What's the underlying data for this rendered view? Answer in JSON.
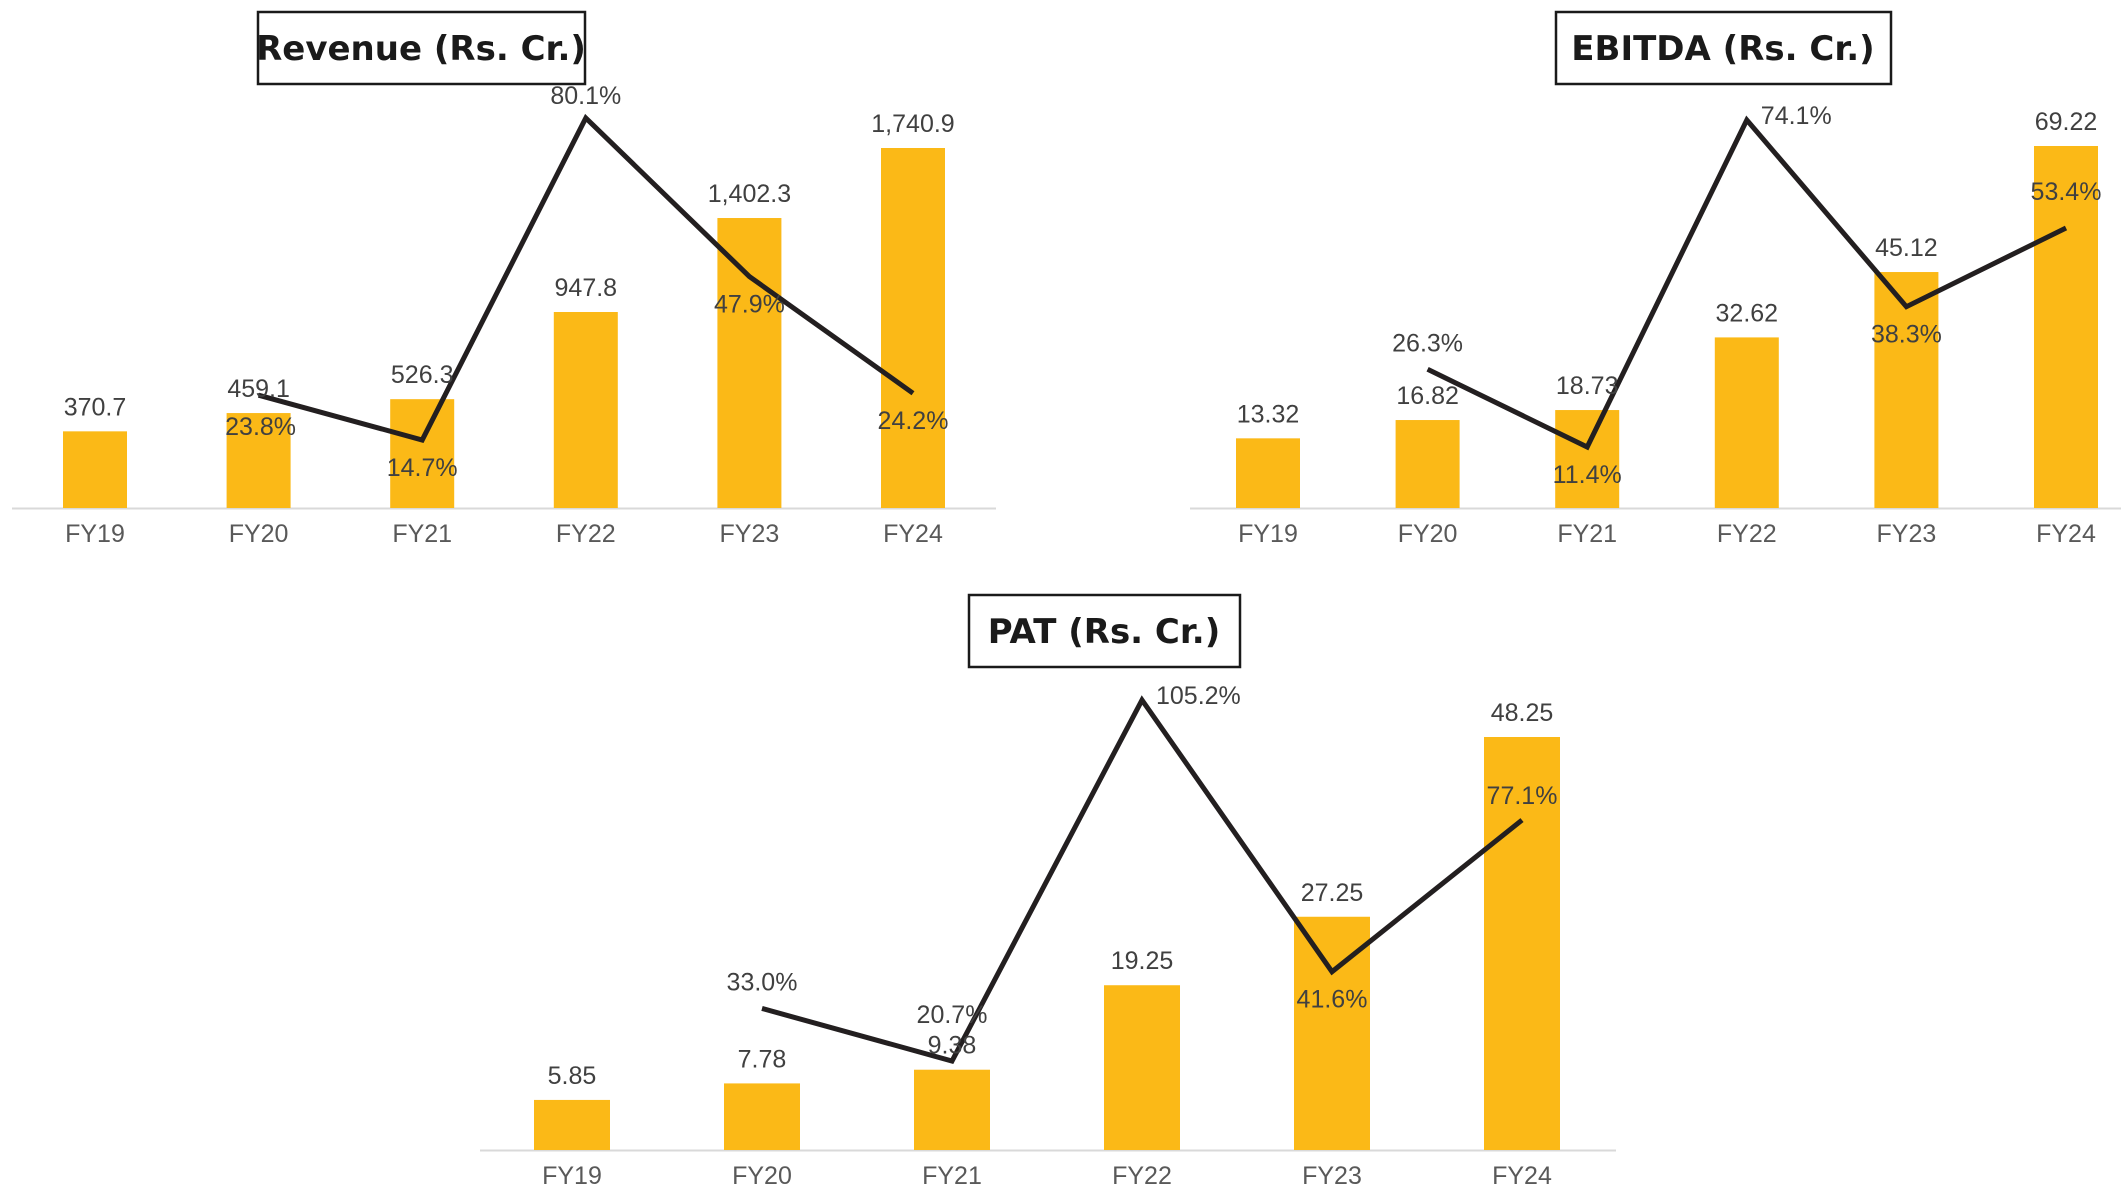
{
  "colors": {
    "bar": "#FBB917",
    "line": "#231F20",
    "axis": "#D9D9D9",
    "text": "#404040"
  },
  "charts": [
    {
      "title": "Revenue (Rs. Cr.)",
      "type": "bar+line",
      "categories": [
        "FY19",
        "FY20",
        "FY21",
        "FY22",
        "FY23",
        "FY24"
      ],
      "bar_values": [
        370.7,
        459.1,
        526.3,
        947.8,
        1402.3,
        1740.9
      ],
      "bar_labels": [
        "370.7",
        "459.1",
        "526.3",
        "947.8",
        "1,402.3",
        "1,740.9"
      ],
      "growth_values": [
        null,
        23.8,
        14.7,
        80.1,
        47.9,
        24.2
      ],
      "growth_labels": [
        "",
        "23.8%",
        "14.7%",
        "80.1%",
        "47.9%",
        "24.2%"
      ]
    },
    {
      "title": "EBITDA (Rs. Cr.)",
      "type": "bar+line",
      "categories": [
        "FY19",
        "FY20",
        "FY21",
        "FY22",
        "FY23",
        "FY24"
      ],
      "bar_values": [
        13.32,
        16.82,
        18.73,
        32.62,
        45.12,
        69.22
      ],
      "bar_labels": [
        "13.32",
        "16.82",
        "18.73",
        "32.62",
        "45.12",
        "69.22"
      ],
      "growth_values": [
        null,
        26.3,
        11.4,
        74.1,
        38.3,
        53.4
      ],
      "growth_labels": [
        "",
        "26.3%",
        "11.4%",
        "74.1%",
        "38.3%",
        "53.4%"
      ]
    },
    {
      "title": "PAT (Rs. Cr.)",
      "type": "bar+line",
      "categories": [
        "FY19",
        "FY20",
        "FY21",
        "FY22",
        "FY23",
        "FY24"
      ],
      "bar_values": [
        5.85,
        7.78,
        9.38,
        19.25,
        27.25,
        48.25
      ],
      "bar_labels": [
        "5.85",
        "7.78",
        "9.38",
        "19.25",
        "27.25",
        "48.25"
      ],
      "growth_values": [
        null,
        33.0,
        20.7,
        105.2,
        41.6,
        77.1
      ],
      "growth_labels": [
        "",
        "33.0%",
        "20.7%",
        "105.2%",
        "41.6%",
        "77.1%"
      ]
    }
  ]
}
